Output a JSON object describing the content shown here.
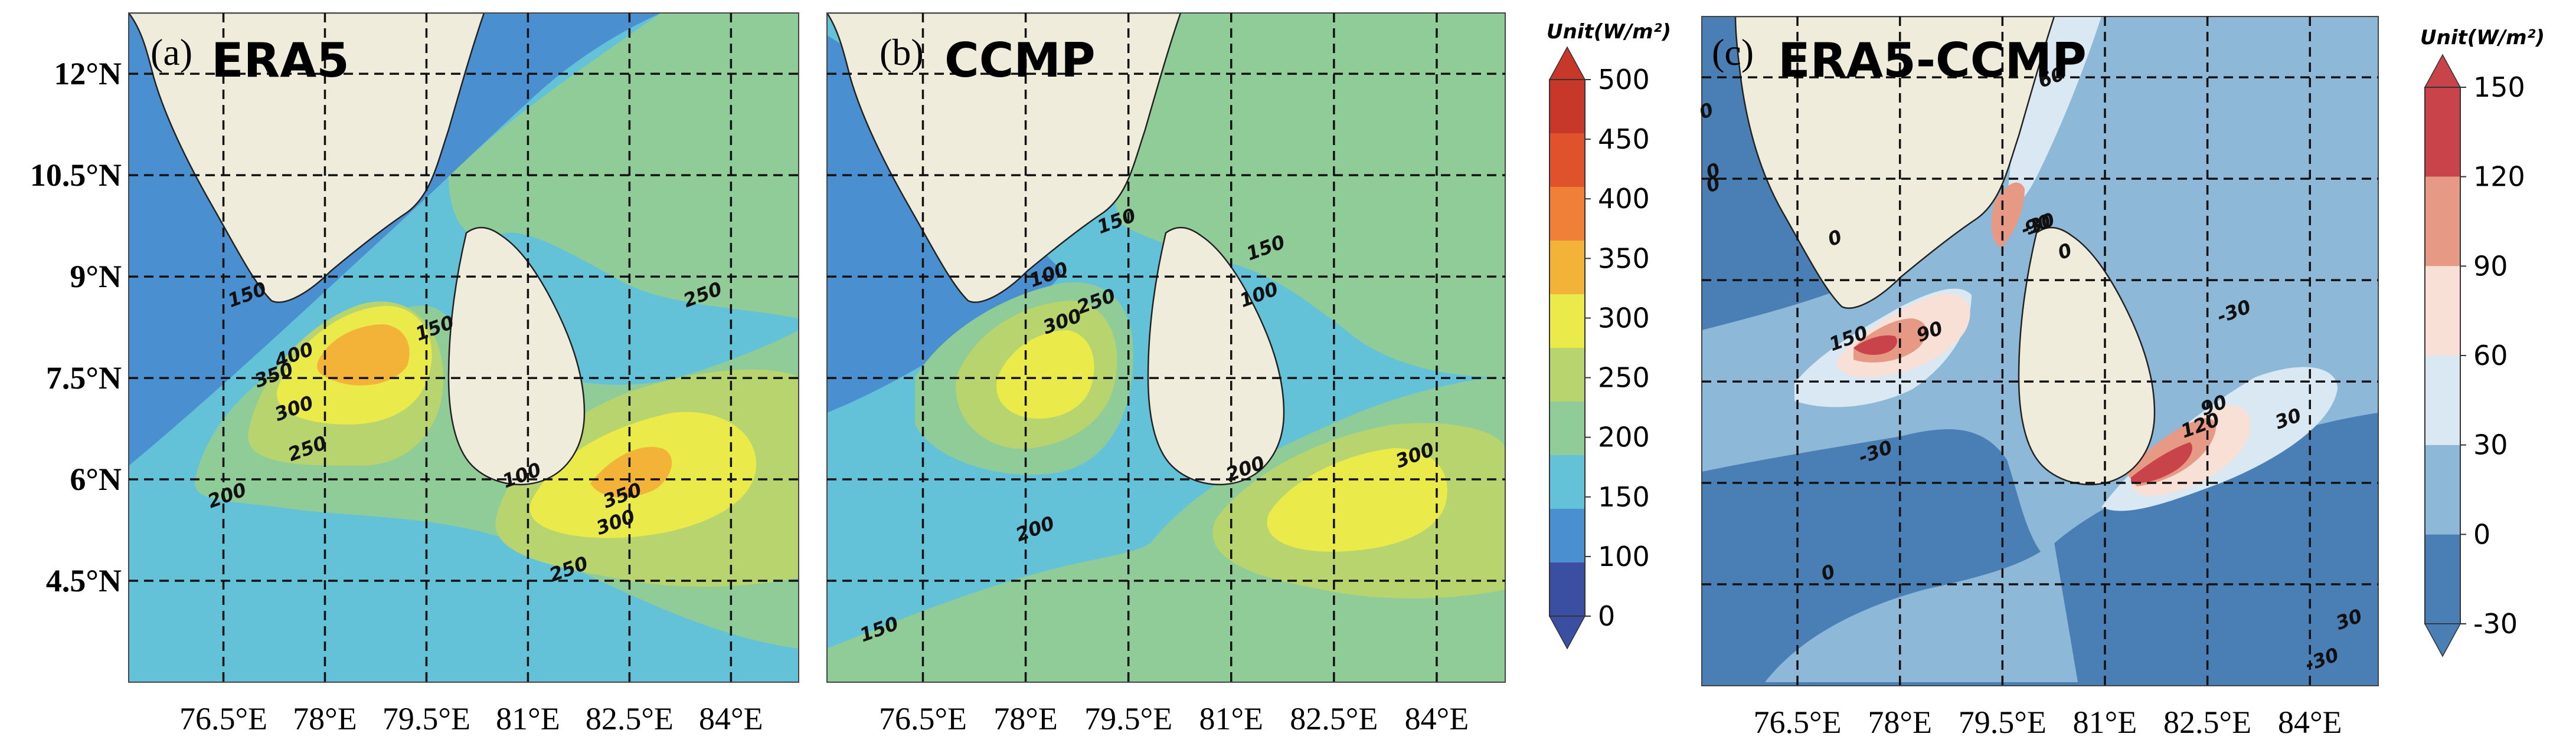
{
  "chart_data": [
    {
      "type": "heatmap",
      "panel_label": "(a)",
      "title": "ERA5",
      "xlabel": "",
      "ylabel": "",
      "x_tick_labels": [
        "76.5°E",
        "78°E",
        "79.5°E",
        "81°E",
        "82.5°E",
        "84°E"
      ],
      "y_tick_labels": [
        "12°N",
        "10.5°N",
        "9°N",
        "7.5°N",
        "6°N",
        "4.5°N"
      ],
      "x_ticks": [
        76.5,
        78,
        79.5,
        81,
        82.5,
        84
      ],
      "y_ticks": [
        12,
        10.5,
        9,
        7.5,
        6,
        4.5
      ],
      "xlim": [
        75.1,
        85.0
      ],
      "ylim": [
        3.0,
        12.9
      ],
      "grid": true,
      "contour_labels": [
        "100",
        "150",
        "150",
        "200",
        "250",
        "250",
        "250",
        "300",
        "300",
        "350",
        "350",
        "400"
      ],
      "colorbar": "wind_power"
    },
    {
      "type": "heatmap",
      "panel_label": "(b)",
      "title": "CCMP",
      "xlabel": "",
      "ylabel": "",
      "x_tick_labels": [
        "76.5°E",
        "78°E",
        "79.5°E",
        "81°E",
        "82.5°E",
        "84°E"
      ],
      "x_ticks": [
        76.5,
        78,
        79.5,
        81,
        82.5,
        84
      ],
      "y_ticks": [
        12,
        10.5,
        9,
        7.5,
        6,
        4.5
      ],
      "xlim": [
        75.1,
        85.0
      ],
      "ylim": [
        3.0,
        12.9
      ],
      "grid": true,
      "contour_labels": [
        "100",
        "100",
        "150",
        "150",
        "150",
        "200",
        "200",
        "250",
        "300",
        "300"
      ],
      "colorbar": "wind_power"
    },
    {
      "type": "heatmap",
      "panel_label": "(c)",
      "title": "ERA5-CCMP",
      "xlabel": "",
      "ylabel": "",
      "x_tick_labels": [
        "76.5°E",
        "78°E",
        "79.5°E",
        "81°E",
        "82.5°E",
        "84°E"
      ],
      "x_ticks": [
        76.5,
        78,
        79.5,
        81,
        82.5,
        84
      ],
      "y_ticks": [
        12,
        10.5,
        9,
        7.5,
        6,
        4.5
      ],
      "xlim": [
        75.1,
        85.0
      ],
      "ylim": [
        3.0,
        12.9
      ],
      "grid": true,
      "contour_labels": [
        "0",
        "0",
        "0",
        "0",
        "0",
        "0",
        "-30",
        "-30",
        "-30",
        "-30",
        "30",
        "30",
        "60",
        "90",
        "90",
        "90",
        "120",
        "150"
      ],
      "colorbar": "difference"
    }
  ],
  "colorbars": {
    "wind_power": {
      "unit_label": "Unit(W/m²)",
      "tick_labels": [
        "0",
        "100",
        "150",
        "200",
        "250",
        "300",
        "350",
        "400",
        "450",
        "500"
      ],
      "colors": [
        "#3a4ea2",
        "#4a8fcf",
        "#63c1d8",
        "#8fcc98",
        "#b7d46f",
        "#eaea4a",
        "#f3b339",
        "#ef8035",
        "#e0522b",
        "#c8382a"
      ]
    },
    "difference": {
      "unit_label": "Unit(W/m²)",
      "tick_labels": [
        "-30",
        "0",
        "30",
        "60",
        "90",
        "120",
        "150"
      ],
      "colors": [
        "#4a7fb5",
        "#8db8d8",
        "#d9e8f2",
        "#f8e0d6",
        "#e69a85",
        "#c9434a"
      ]
    }
  },
  "land_color": "#efecdc"
}
